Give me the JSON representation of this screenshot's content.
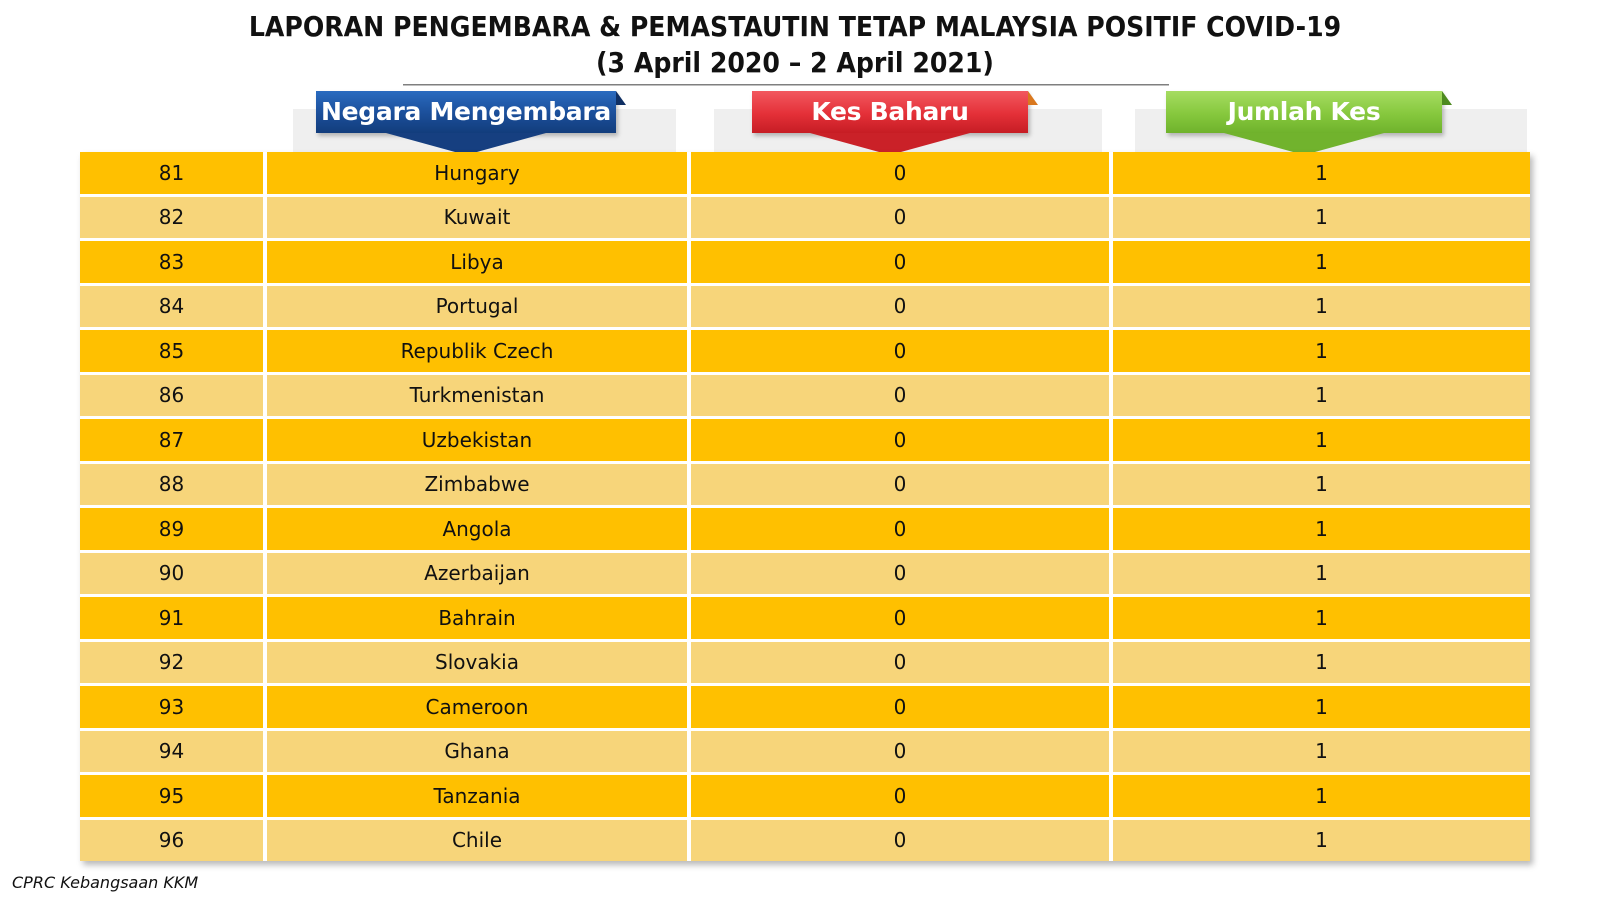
{
  "report": {
    "title_line1": "LAPORAN PENGEMBARA & PEMASTAUTIN TETAP MALAYSIA POSITIF COVID-19",
    "title_line2": "(3 April 2020 – 2 April  2021)"
  },
  "headers": {
    "country": "Negara Mengembara",
    "new_cases": "Kes Baharu",
    "total_cases": "Jumlah Kes"
  },
  "colors": {
    "row_dark": "#ffc000",
    "row_light": "#f7d57a",
    "banner_country": "#1b4e99",
    "banner_new_cases": "#e43038",
    "banner_total_cases": "#86c83d"
  },
  "rows": [
    {
      "no": "81",
      "country": "Hungary",
      "new_cases": "0",
      "total_cases": "1"
    },
    {
      "no": "82",
      "country": "Kuwait",
      "new_cases": "0",
      "total_cases": "1"
    },
    {
      "no": "83",
      "country": "Libya",
      "new_cases": "0",
      "total_cases": "1"
    },
    {
      "no": "84",
      "country": "Portugal",
      "new_cases": "0",
      "total_cases": "1"
    },
    {
      "no": "85",
      "country": "Republik Czech",
      "new_cases": "0",
      "total_cases": "1"
    },
    {
      "no": "86",
      "country": "Turkmenistan",
      "new_cases": "0",
      "total_cases": "1"
    },
    {
      "no": "87",
      "country": "Uzbekistan",
      "new_cases": "0",
      "total_cases": "1"
    },
    {
      "no": "88",
      "country": "Zimbabwe",
      "new_cases": "0",
      "total_cases": "1"
    },
    {
      "no": "89",
      "country": "Angola",
      "new_cases": "0",
      "total_cases": "1"
    },
    {
      "no": "90",
      "country": "Azerbaijan",
      "new_cases": "0",
      "total_cases": "1"
    },
    {
      "no": "91",
      "country": "Bahrain",
      "new_cases": "0",
      "total_cases": "1"
    },
    {
      "no": "92",
      "country": "Slovakia",
      "new_cases": "0",
      "total_cases": "1"
    },
    {
      "no": "93",
      "country": "Cameroon",
      "new_cases": "0",
      "total_cases": "1"
    },
    {
      "no": "94",
      "country": "Ghana",
      "new_cases": "0",
      "total_cases": "1"
    },
    {
      "no": "95",
      "country": "Tanzania",
      "new_cases": "0",
      "total_cases": "1"
    },
    {
      "no": "96",
      "country": "Chile",
      "new_cases": "0",
      "total_cases": "1"
    }
  ],
  "footer": {
    "source": "CPRC Kebangsaan KKM"
  }
}
